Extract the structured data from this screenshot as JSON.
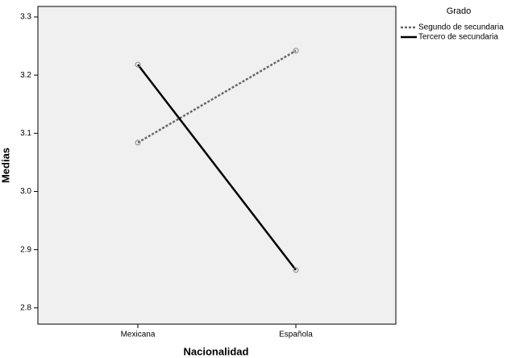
{
  "chart_data": {
    "type": "line",
    "x_label": "Nacionalidad",
    "y_label": "Medias",
    "categories": [
      "Mexicana",
      "Española"
    ],
    "series": [
      {
        "name": "Segundo de secundaria",
        "color": "#666666",
        "style": "dotted",
        "values": [
          3.084,
          3.242
        ]
      },
      {
        "name": "Tercero de secundaria",
        "color": "#000000",
        "style": "solid",
        "values": [
          3.218,
          2.865
        ]
      }
    ],
    "ylim": [
      2.772,
      3.318
    ],
    "yticks": [
      2.8,
      2.9,
      {
        "value": 3,
        "label": "3.0"
      },
      3.1,
      3.2,
      3.3
    ],
    "legend_title": "Grado",
    "legend_position": "right",
    "grid": false
  }
}
